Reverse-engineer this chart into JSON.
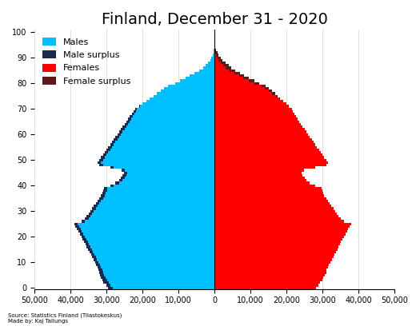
{
  "title": "Finland, December 31 - 2020",
  "source_text": "Source: Statistics Finland (Tilastokeskus)\nMade by: Kaj Tallungs",
  "male_color": "#00BFFF",
  "male_surplus_color": "#1C2951",
  "female_color": "#FF0000",
  "female_surplus_color": "#5C1A1A",
  "background_color": "#FFFFFF",
  "xlim": [
    -50000,
    50000
  ],
  "xticks": [
    -50000,
    -40000,
    -30000,
    -20000,
    -10000,
    0,
    10000,
    20000,
    30000,
    40000,
    50000
  ],
  "xticklabels": [
    "50,000",
    "40,000",
    "30,000",
    "20,000",
    "10,000",
    "0",
    "10,000",
    "20,000",
    "30,000",
    "40,000",
    "50,000"
  ],
  "ages": [
    0,
    1,
    2,
    3,
    4,
    5,
    6,
    7,
    8,
    9,
    10,
    11,
    12,
    13,
    14,
    15,
    16,
    17,
    18,
    19,
    20,
    21,
    22,
    23,
    24,
    25,
    26,
    27,
    28,
    29,
    30,
    31,
    32,
    33,
    34,
    35,
    36,
    37,
    38,
    39,
    40,
    41,
    42,
    43,
    44,
    45,
    46,
    47,
    48,
    49,
    50,
    51,
    52,
    53,
    54,
    55,
    56,
    57,
    58,
    59,
    60,
    61,
    62,
    63,
    64,
    65,
    66,
    67,
    68,
    69,
    70,
    71,
    72,
    73,
    74,
    75,
    76,
    77,
    78,
    79,
    80,
    81,
    82,
    83,
    84,
    85,
    86,
    87,
    88,
    89,
    90,
    91,
    92,
    93,
    94,
    95,
    96,
    97,
    98,
    99,
    100
  ],
  "males": [
    29500,
    30100,
    30800,
    31200,
    31500,
    31800,
    32000,
    32200,
    32500,
    32800,
    33200,
    33600,
    34000,
    34300,
    34700,
    35100,
    35500,
    35800,
    36200,
    36600,
    37000,
    37400,
    37800,
    38200,
    38600,
    39000,
    37000,
    36000,
    35500,
    35000,
    34500,
    34000,
    33500,
    33000,
    32500,
    32000,
    31500,
    31200,
    30900,
    30700,
    29000,
    27500,
    26500,
    26000,
    25500,
    25200,
    25800,
    29000,
    32000,
    32500,
    32000,
    31500,
    31000,
    30500,
    30000,
    29500,
    29000,
    28500,
    28000,
    27500,
    27000,
    26500,
    26000,
    25500,
    25000,
    24500,
    24000,
    23500,
    23000,
    22500,
    22000,
    21000,
    20000,
    19000,
    18000,
    17000,
    16000,
    15000,
    14000,
    13000,
    11000,
    9500,
    8000,
    6800,
    5500,
    4200,
    3200,
    2400,
    1700,
    1200,
    800,
    500,
    300,
    180,
    100,
    60,
    30,
    15,
    7,
    3,
    1
  ],
  "females": [
    28200,
    28800,
    29400,
    29900,
    30300,
    30700,
    31000,
    31200,
    31500,
    31800,
    32200,
    32600,
    33000,
    33300,
    33700,
    34100,
    34500,
    34800,
    35200,
    35600,
    36000,
    36400,
    36800,
    37200,
    37600,
    38000,
    36000,
    35000,
    34500,
    34000,
    33500,
    33000,
    32500,
    32000,
    31500,
    31000,
    30500,
    30200,
    29900,
    29700,
    28000,
    26500,
    25500,
    25000,
    24500,
    24200,
    24800,
    28000,
    31000,
    31500,
    31000,
    30500,
    30000,
    29500,
    29000,
    28500,
    28000,
    27500,
    27000,
    26500,
    26000,
    25500,
    25000,
    24500,
    24000,
    23500,
    23200,
    22700,
    22200,
    21700,
    21500,
    20700,
    20000,
    19100,
    18200,
    17500,
    16800,
    16000,
    15200,
    14200,
    12500,
    11000,
    9500,
    8200,
    7000,
    5700,
    4700,
    3900,
    3100,
    2300,
    1700,
    1200,
    800,
    500,
    300,
    170,
    90,
    45,
    20,
    8,
    2
  ],
  "title_fontsize": 14,
  "axis_label_fontsize": 7,
  "legend_fontsize": 8
}
